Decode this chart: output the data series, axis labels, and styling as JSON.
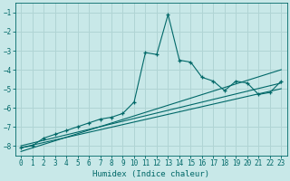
{
  "xlabel": "Humidex (Indice chaleur)",
  "bg_color": "#c8e8e8",
  "grid_color": "#b0d4d4",
  "line_color": "#006868",
  "xlim": [
    -0.5,
    23.5
  ],
  "ylim": [
    -8.5,
    -0.5
  ],
  "xticks": [
    0,
    1,
    2,
    3,
    4,
    5,
    6,
    7,
    8,
    9,
    10,
    11,
    12,
    13,
    14,
    15,
    16,
    17,
    18,
    19,
    20,
    21,
    22,
    23
  ],
  "yticks": [
    -8,
    -7,
    -6,
    -5,
    -4,
    -3,
    -2,
    -1
  ],
  "main_x": [
    0,
    1,
    2,
    3,
    4,
    5,
    6,
    7,
    8,
    9,
    10,
    11,
    12,
    13,
    14,
    15,
    16,
    17,
    18,
    19,
    20,
    21,
    22,
    23
  ],
  "main_y": [
    -8.1,
    -8.0,
    -7.6,
    -7.4,
    -7.2,
    -7.0,
    -6.8,
    -6.6,
    -6.5,
    -6.3,
    -5.7,
    -3.1,
    -3.2,
    -1.1,
    -3.5,
    -3.6,
    -4.4,
    -4.6,
    -5.1,
    -4.6,
    -4.7,
    -5.3,
    -5.2,
    -4.6
  ],
  "line1_x": [
    0,
    23
  ],
  "line1_y": [
    -8.0,
    -4.7
  ],
  "line2_x": [
    0,
    23
  ],
  "line2_y": [
    -8.1,
    -5.0
  ],
  "line3_x": [
    0,
    23
  ],
  "line3_y": [
    -8.3,
    -4.0
  ]
}
